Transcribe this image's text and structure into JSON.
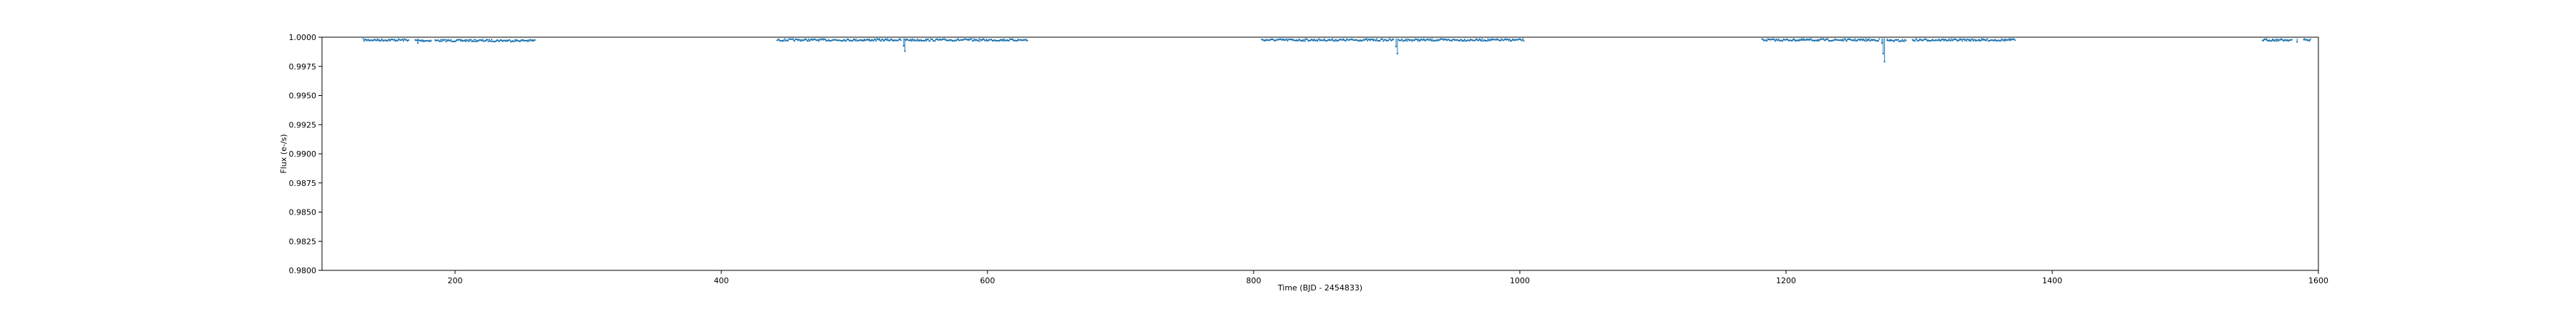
{
  "chart_data": {
    "type": "scatter",
    "title": "",
    "xlabel": "Time (BJD - 2454833)",
    "ylabel": "Flux (e-/s)",
    "xlim": [
      100,
      1600
    ],
    "ylim": [
      0.98,
      1.0
    ],
    "xticks": [
      200,
      400,
      600,
      800,
      1000,
      1200,
      1400,
      1600
    ],
    "xtick_labels": [
      "200",
      "400",
      "600",
      "800",
      "1000",
      "1200",
      "1400",
      "1600"
    ],
    "yticks": [
      0.98,
      0.9825,
      0.985,
      0.9875,
      0.99,
      0.9925,
      0.995,
      0.9975,
      1.0
    ],
    "ytick_labels": [
      "0.9800",
      "0.9825",
      "0.9850",
      "0.9875",
      "0.9900",
      "0.9925",
      "0.9950",
      "0.9975",
      "1.0000"
    ],
    "grid": false,
    "series_color": "#1f77b4",
    "segments": [
      {
        "x_start": 131,
        "x_end": 165,
        "y": 0.99985
      },
      {
        "x_start": 170,
        "x_end": 182,
        "y": 0.9998
      },
      {
        "x_start": 185,
        "x_end": 260,
        "y": 0.9998
      },
      {
        "x_start": 442,
        "x_end": 535,
        "y": 0.99985
      },
      {
        "x_start": 538,
        "x_end": 630,
        "y": 0.99985
      },
      {
        "x_start": 806,
        "x_end": 905,
        "y": 0.99985
      },
      {
        "x_start": 909,
        "x_end": 1003,
        "y": 0.99985
      },
      {
        "x_start": 1182,
        "x_end": 1270,
        "y": 0.99985
      },
      {
        "x_start": 1276,
        "x_end": 1290,
        "y": 0.9998
      },
      {
        "x_start": 1295,
        "x_end": 1372,
        "y": 0.99985
      },
      {
        "x_start": 1558,
        "x_end": 1580,
        "y": 0.99985
      },
      {
        "x_start": 1589,
        "x_end": 1594,
        "y": 0.99985
      }
    ],
    "dips": [
      {
        "x": 172,
        "y": 0.9995
      },
      {
        "x": 537,
        "y": 0.99925
      },
      {
        "x": 538,
        "y": 0.9988
      },
      {
        "x": 907,
        "y": 0.9992
      },
      {
        "x": 908,
        "y": 0.9986
      },
      {
        "x": 1272,
        "y": 0.9995
      },
      {
        "x": 1273,
        "y": 0.9986
      },
      {
        "x": 1274,
        "y": 0.9979
      },
      {
        "x": 1276,
        "y": 0.99975
      },
      {
        "x": 1584,
        "y": 0.9996
      }
    ]
  }
}
